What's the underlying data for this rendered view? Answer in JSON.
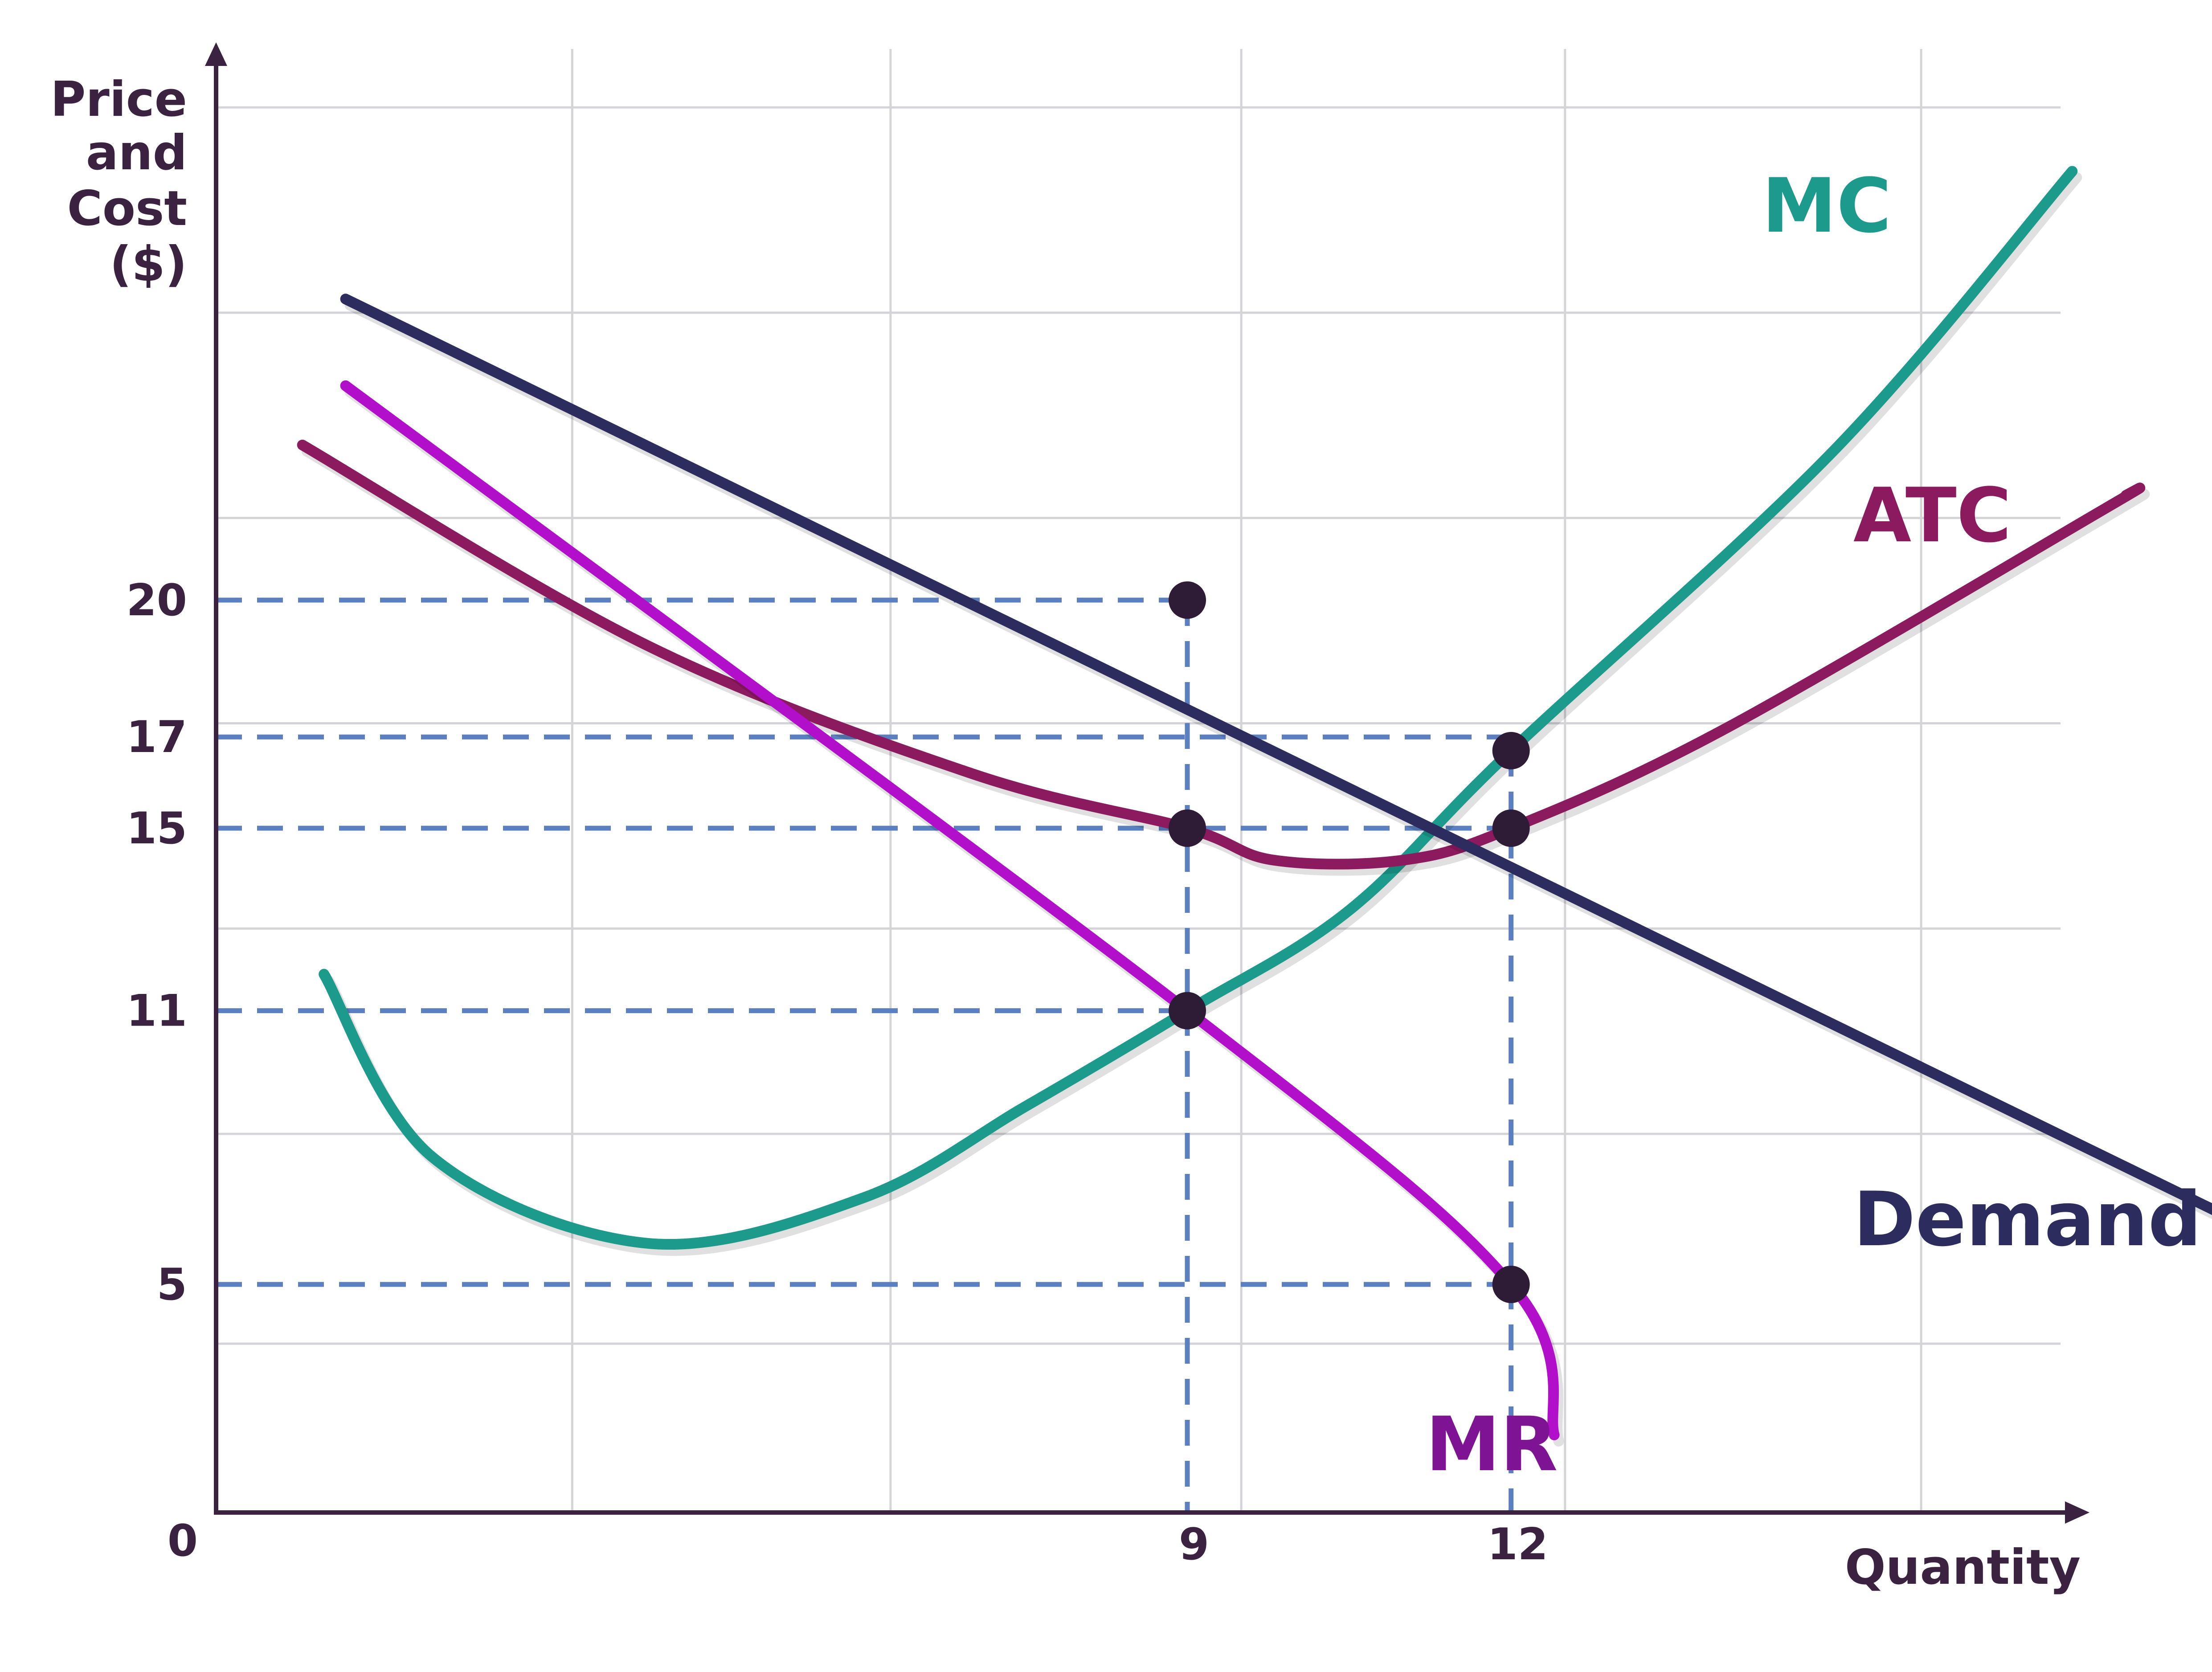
{
  "chart_data": {
    "type": "line",
    "title": "",
    "ylabel_lines": [
      "Price",
      "and",
      "Cost",
      "($)"
    ],
    "xlabel": "Quantity",
    "origin_label": "0",
    "x_ticks": [
      9,
      12
    ],
    "y_ticks": [
      5,
      11,
      15,
      17,
      20
    ],
    "xlim": [
      0,
      19.5
    ],
    "ylim": [
      0,
      30
    ],
    "grid": true,
    "series": [
      {
        "name": "Demand",
        "color": "#2c2c5e",
        "points": [
          [
            1.2,
            26.6
          ],
          [
            18.8,
            6.3
          ]
        ]
      },
      {
        "name": "MR",
        "color": "#b10fc9",
        "label_color": "#7e1493",
        "points": [
          [
            1.2,
            24.7
          ],
          [
            9,
            11
          ],
          [
            12,
            5
          ],
          [
            12.4,
            1.7
          ]
        ]
      },
      {
        "name": "ATC",
        "color": "#8b1a5f",
        "points": [
          [
            0.8,
            23.4
          ],
          [
            4,
            19
          ],
          [
            7,
            16.2
          ],
          [
            9,
            15
          ],
          [
            9.8,
            14.3
          ],
          [
            11,
            14.3
          ],
          [
            12,
            15
          ],
          [
            14,
            17.2
          ],
          [
            17.5,
            22
          ],
          [
            17.7,
            22.3
          ]
        ]
      },
      {
        "name": "MC",
        "color": "#1c9a8c",
        "points": [
          [
            1,
            11.8
          ],
          [
            2,
            7.8
          ],
          [
            4,
            5.9
          ],
          [
            6,
            6.9
          ],
          [
            7.5,
            8.9
          ],
          [
            9,
            11
          ],
          [
            10.5,
            13.2
          ],
          [
            12,
            16.7
          ],
          [
            15,
            23.3
          ],
          [
            17.2,
            29.4
          ]
        ]
      }
    ],
    "highlighted_points": [
      {
        "x": 9,
        "y": 20
      },
      {
        "x": 9,
        "y": 15
      },
      {
        "x": 9,
        "y": 11
      },
      {
        "x": 12,
        "y": 16.7
      },
      {
        "x": 12,
        "y": 15
      },
      {
        "x": 12,
        "y": 5
      }
    ],
    "horizontal_guides": [
      {
        "y": 20,
        "x_end": 9
      },
      {
        "y": 17,
        "x_end": 12
      },
      {
        "y": 15,
        "x_end": 12
      },
      {
        "y": 11,
        "x_end": 9
      },
      {
        "y": 5,
        "x_end": 12
      }
    ],
    "vertical_guides": [
      {
        "x": 9,
        "y_top": 20
      },
      {
        "x": 12,
        "y_top": 16.7
      }
    ]
  }
}
